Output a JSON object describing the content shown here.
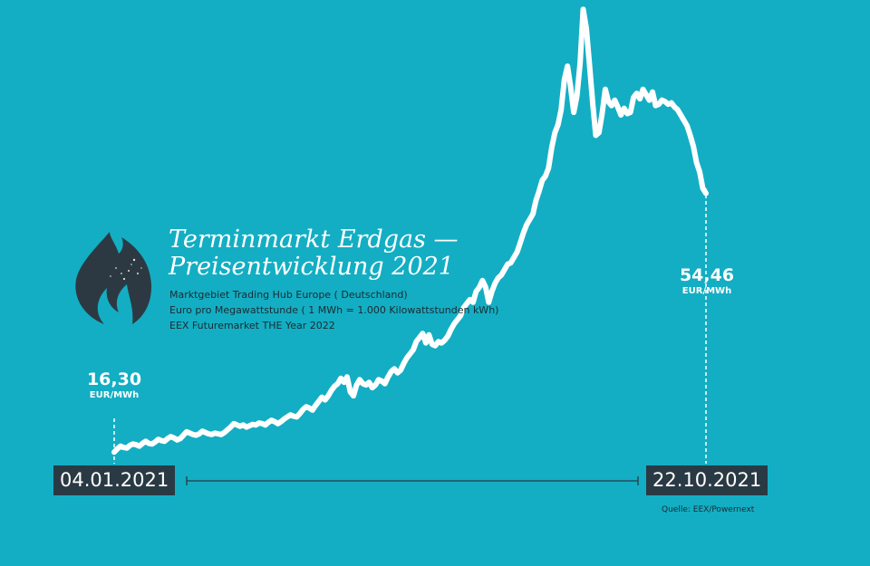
{
  "title_line1": "Terminmarkt Erdgas —",
  "title_line2": "Preisentwicklung 2021",
  "subtitle_lines": [
    "Marktgebiet Trading Hub Europe ( Deutschland)",
    "Euro pro Megawattstunde ( 1 MWh = 1.000 Kilowattstunden kWh)",
    "EEX Futuremarket THE Year 2022"
  ],
  "start": {
    "value": "16,30",
    "unit": "EUR/MWh",
    "date": "04.01.2021"
  },
  "end": {
    "value": "54,46",
    "unit": "EUR/MWh",
    "date": "22.10.2021"
  },
  "source": "Quelle: EEX/Powernext",
  "colors": {
    "background": "#13aec3",
    "line": "#ffffff",
    "dark": "#2a3a44",
    "flame": "#2d3942"
  },
  "icons": {
    "flame": "flame-icon"
  },
  "chart_data": {
    "type": "line",
    "title": "Terminmarkt Erdgas — Preisentwicklung 2021",
    "x_start": "04.01.2021",
    "x_end": "22.10.2021",
    "ylabel": "EUR/MWh",
    "series": [
      {
        "values": [
          16.3,
          16.8,
          17.2,
          17.0,
          16.9,
          17.3,
          17.5,
          17.4,
          17.2,
          17.6,
          17.9,
          17.6,
          17.5,
          17.8,
          18.2,
          18.0,
          17.9,
          18.3,
          18.6,
          18.4,
          18.1,
          18.3,
          18.8,
          19.3,
          19.1,
          18.9,
          18.8,
          19.0,
          19.4,
          19.2,
          19.0,
          18.9,
          19.1,
          19.0,
          18.9,
          19.2,
          19.6,
          20.0,
          20.5,
          20.3,
          20.1,
          20.3,
          20.0,
          20.2,
          20.4,
          20.3,
          20.6,
          20.5,
          20.3,
          20.7,
          21.0,
          20.8,
          20.5,
          20.8,
          21.2,
          21.5,
          21.8,
          21.6,
          21.5,
          22.0,
          22.6,
          23.0,
          22.8,
          22.5,
          23.2,
          23.8,
          24.4,
          24.0,
          24.6,
          25.4,
          26.0,
          26.4,
          27.2,
          26.6,
          27.4,
          25.2,
          24.6,
          26.2,
          27.0,
          26.4,
          26.2,
          26.6,
          25.8,
          26.2,
          27.0,
          26.8,
          26.4,
          27.4,
          28.2,
          28.6,
          28.0,
          28.4,
          29.4,
          30.2,
          30.8,
          31.4,
          32.6,
          33.2,
          33.8,
          32.4,
          33.6,
          32.2,
          32.0,
          32.6,
          32.4,
          32.8,
          33.4,
          34.4,
          35.2,
          35.8,
          36.4,
          37.6,
          38.2,
          38.8,
          38.4,
          40.0,
          40.6,
          41.6,
          40.6,
          38.4,
          40.0,
          41.2,
          42.0,
          42.4,
          43.2,
          44.0,
          44.2,
          45.0,
          45.8,
          47.2,
          48.6,
          49.8,
          50.6,
          51.4,
          53.4,
          54.8,
          56.4,
          57.0,
          58.2,
          61.2,
          63.4,
          64.6,
          66.8,
          71.2,
          73.2,
          70.2,
          66.4,
          68.8,
          73.6,
          81.6,
          78.8,
          73.4,
          67.8,
          63.0,
          63.4,
          66.2,
          69.8,
          68.0,
          67.4,
          68.2,
          67.2,
          66.0,
          67.0,
          66.2,
          66.4,
          68.6,
          69.2,
          68.4,
          69.8,
          69.0,
          68.2,
          69.4,
          67.4,
          67.6,
          68.2,
          68.0,
          67.6,
          67.8,
          67.2,
          66.8,
          66.0,
          65.2,
          64.4,
          63.0,
          61.4,
          59.0,
          57.6,
          55.2,
          54.46
        ]
      }
    ]
  }
}
